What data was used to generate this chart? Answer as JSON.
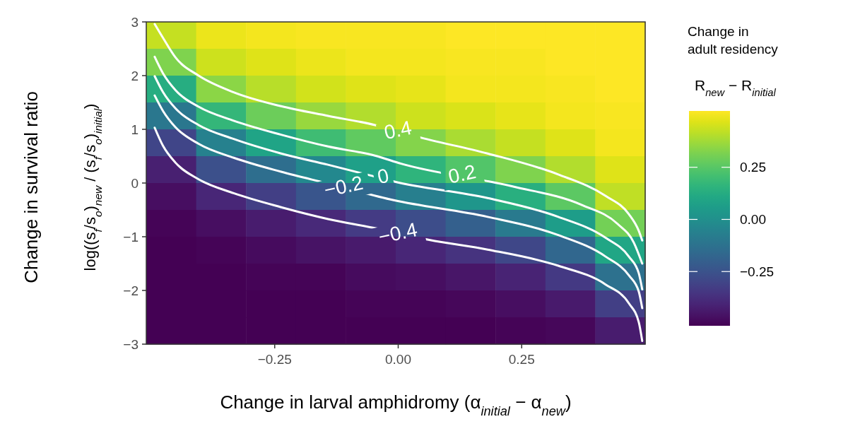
{
  "chart_data": {
    "type": "heatmap",
    "xlabel": "Change in larval amphidromy (α$_{initial}$ − α$_{new}$)",
    "ylabel": "Change in survival ratio\nlog((s$_{f}$/s$_{o}$)$_{new}$ / (s$_{f}$/s$_{o}$)$_{initial}$)",
    "clabel": "Change in\nadult residency\nR$_{new}$ − R$_{initial}$",
    "cells": [
      [
        0.43,
        0.49,
        0.5,
        0.51,
        0.51,
        0.51,
        0.52,
        0.52,
        0.52,
        0.52
      ],
      [
        0.32,
        0.44,
        0.47,
        0.49,
        0.5,
        0.5,
        0.51,
        0.51,
        0.52,
        0.52
      ],
      [
        0.13,
        0.34,
        0.41,
        0.45,
        0.47,
        0.48,
        0.5,
        0.5,
        0.51,
        0.52
      ],
      [
        -0.1,
        0.17,
        0.29,
        0.36,
        0.4,
        0.44,
        0.46,
        0.48,
        0.5,
        0.51
      ],
      [
        -0.3,
        -0.06,
        0.09,
        0.2,
        0.27,
        0.33,
        0.39,
        0.43,
        0.47,
        0.5
      ],
      [
        -0.42,
        -0.26,
        -0.14,
        -0.03,
        0.07,
        0.16,
        0.24,
        0.32,
        0.4,
        0.47
      ],
      [
        -0.47,
        -0.4,
        -0.32,
        -0.24,
        -0.16,
        -0.07,
        0.03,
        0.14,
        0.26,
        0.42
      ],
      [
        -0.5,
        -0.47,
        -0.43,
        -0.39,
        -0.33,
        -0.27,
        -0.2,
        -0.09,
        0.06,
        0.3
      ],
      [
        -0.51,
        -0.5,
        -0.48,
        -0.46,
        -0.44,
        -0.4,
        -0.36,
        -0.29,
        -0.17,
        0.1
      ],
      [
        -0.52,
        -0.51,
        -0.5,
        -0.5,
        -0.48,
        -0.47,
        -0.45,
        -0.41,
        -0.34,
        -0.13
      ],
      [
        -0.52,
        -0.52,
        -0.51,
        -0.51,
        -0.5,
        -0.5,
        -0.49,
        -0.47,
        -0.44,
        -0.32
      ],
      [
        -0.52,
        -0.52,
        -0.52,
        -0.52,
        -0.51,
        -0.51,
        -0.51,
        -0.5,
        -0.49,
        -0.43
      ]
    ],
    "xlim": [
      -0.51,
      0.5
    ],
    "xticks": [
      {
        "value": -0.25,
        "label": "−0.25"
      },
      {
        "value": 0,
        "label": "0.00"
      },
      {
        "value": 0.25,
        "label": "0.25"
      }
    ],
    "ylim": [
      -3,
      3
    ],
    "yticks": [
      {
        "value": -3,
        "label": "−3"
      },
      {
        "value": -2,
        "label": "−2"
      },
      {
        "value": -1,
        "label": "−1"
      },
      0,
      1,
      2,
      3
    ],
    "clim": [
      -0.51,
      0.52
    ],
    "cticks": [
      {
        "value": -0.25,
        "label": "−0.25"
      },
      {
        "value": 0,
        "label": "0.00"
      },
      0.25
    ],
    "series": [
      {
        "type": "line",
        "color": "#ffffff",
        "x": [
          -0.493,
          -0.476,
          -0.451,
          -0.404,
          -0.333,
          -0.237,
          -0.142,
          -0.047,
          0.039,
          0.181,
          0.324,
          0.42,
          0.467,
          0.487,
          0.494
        ],
        "values": [
          2.96,
          2.7,
          2.34,
          2.0,
          1.69,
          1.43,
          1.25,
          1.08,
          0.86,
          0.55,
          0.16,
          -0.24,
          -0.58,
          -0.89,
          -1.07
        ]
      },
      {
        "type": "line",
        "color": "#ffffff",
        "x": [
          -0.493,
          -0.476,
          -0.451,
          -0.404,
          -0.333,
          -0.237,
          -0.142,
          -0.047,
          0.006,
          0.23,
          0.372,
          0.444,
          0.477,
          0.494
        ],
        "values": [
          2.35,
          2.04,
          1.73,
          1.42,
          1.16,
          0.9,
          0.68,
          0.51,
          0.36,
          -0.06,
          -0.41,
          -0.76,
          -1.11,
          -1.5
        ]
      },
      {
        "type": "line",
        "color": "#ffffff",
        "x": [
          -0.493,
          -0.476,
          -0.451,
          -0.404,
          -0.333,
          -0.237,
          -0.142,
          -0.047,
          -0.009,
          0.181,
          0.324,
          0.42,
          0.467,
          0.487,
          0.494
        ],
        "values": [
          1.99,
          1.69,
          1.39,
          1.08,
          0.82,
          0.55,
          0.34,
          0.12,
          0.03,
          -0.28,
          -0.63,
          -1.02,
          -1.37,
          -1.68,
          -1.98
        ]
      },
      {
        "type": "line",
        "color": "#ffffff",
        "x": [
          -0.493,
          -0.476,
          -0.451,
          -0.404,
          -0.333,
          -0.237,
          -0.142,
          -0.009,
          0.181,
          0.324,
          0.42,
          0.467,
          0.487,
          0.494
        ],
        "values": [
          1.63,
          1.34,
          1.04,
          0.73,
          0.47,
          0.21,
          -0.01,
          -0.32,
          -0.63,
          -0.97,
          -1.37,
          -1.72,
          -2.02,
          -2.33
        ]
      },
      {
        "type": "line",
        "color": "#ffffff",
        "x": [
          -0.493,
          -0.476,
          -0.451,
          -0.404,
          -0.333,
          -0.237,
          -0.142,
          -0.047,
          0.063,
          0.181,
          0.324,
          0.42,
          0.467,
          0.487,
          0.494
        ],
        "values": [
          1.03,
          0.69,
          0.38,
          0.07,
          -0.19,
          -0.45,
          -0.67,
          -0.84,
          -1.06,
          -1.24,
          -1.54,
          -1.89,
          -2.24,
          -2.59,
          -2.94
        ]
      }
    ],
    "annotations": [
      {
        "text": "0.4",
        "x": 0.0,
        "y": 0.96
      },
      {
        "text": "0.2",
        "x": 0.13,
        "y": 0.14
      },
      {
        "text": "0",
        "x": -0.03,
        "y": 0.1
      },
      {
        "text": "−0.2",
        "x": -0.11,
        "y": -0.09
      },
      {
        "text": "−0.4",
        "x": 0.0,
        "y": -0.96
      }
    ]
  }
}
